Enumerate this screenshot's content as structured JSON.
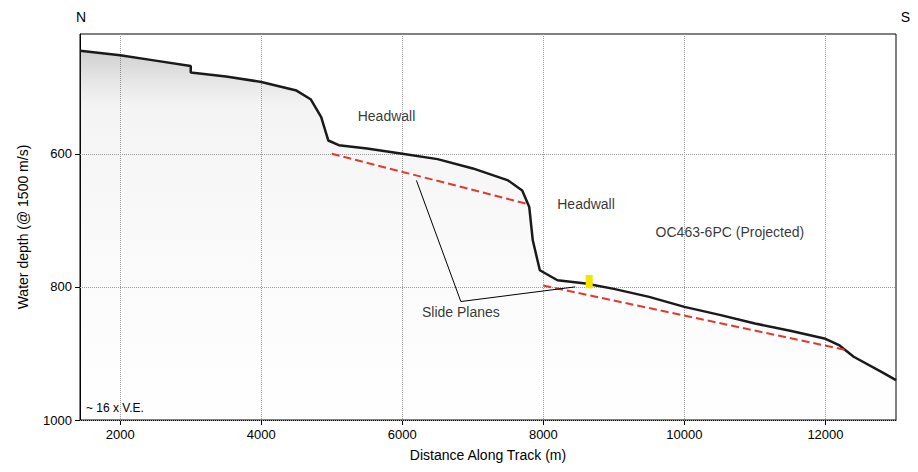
{
  "chart_data": {
    "type": "line",
    "x_label": "Distance Along Track (m)",
    "y_label": "Water depth (@ 1500 m/s)",
    "xlim": [
      1430,
      13000
    ],
    "xticks": [
      2000,
      4000,
      6000,
      8000,
      10000,
      12000
    ],
    "ylim": [
      420,
      1000
    ],
    "yticks": [
      600,
      800,
      1000
    ],
    "grid": true,
    "series": [
      {
        "type": "area",
        "color": "#1a1a1a",
        "line_style": "solid",
        "x": [
          1430,
          2000,
          2500,
          3000,
          3000,
          3500,
          4000,
          4500,
          4700,
          4850,
          4950,
          5100,
          5500,
          6000,
          6500,
          7000,
          7500,
          7700,
          7800,
          7850,
          7950,
          8200,
          8600,
          9000,
          9500,
          10000,
          10500,
          11000,
          11500,
          12000,
          12200,
          12400,
          12800,
          13000
        ],
        "values": [
          445,
          452,
          460,
          468,
          478,
          484,
          492,
          505,
          518,
          545,
          580,
          587,
          592,
          600,
          608,
          622,
          640,
          655,
          680,
          730,
          775,
          790,
          795,
          803,
          815,
          830,
          842,
          855,
          866,
          878,
          888,
          905,
          928,
          940
        ]
      },
      {
        "type": "line",
        "color": "#e03a2f",
        "line_style": "dashed",
        "x": [
          5000,
          7800
        ],
        "values": [
          600,
          676
        ]
      },
      {
        "type": "line",
        "color": "#e03a2f",
        "line_style": "dashed",
        "x": [
          8000,
          12300
        ],
        "values": [
          798,
          895
        ]
      },
      {
        "type": "core",
        "color": "#f2e600",
        "line_style": "solid",
        "x": [
          8650,
          8650
        ],
        "values": [
          782,
          802
        ]
      }
    ],
    "annotations": [
      {
        "text": "Headwall",
        "x": 5776,
        "y": 543
      },
      {
        "text": "Headwall",
        "x": 8605,
        "y": 676
      },
      {
        "text": "OC463-6PC (Projected)",
        "x": 10645,
        "y": 718
      },
      {
        "text": "Slide Planes",
        "x": 6830,
        "y": 822,
        "pointers": [
          [
            6200,
            640
          ],
          [
            8450,
            800
          ]
        ]
      }
    ],
    "directions": {
      "left": "N",
      "right": "S"
    },
    "note": "~ 16 x V.E."
  }
}
